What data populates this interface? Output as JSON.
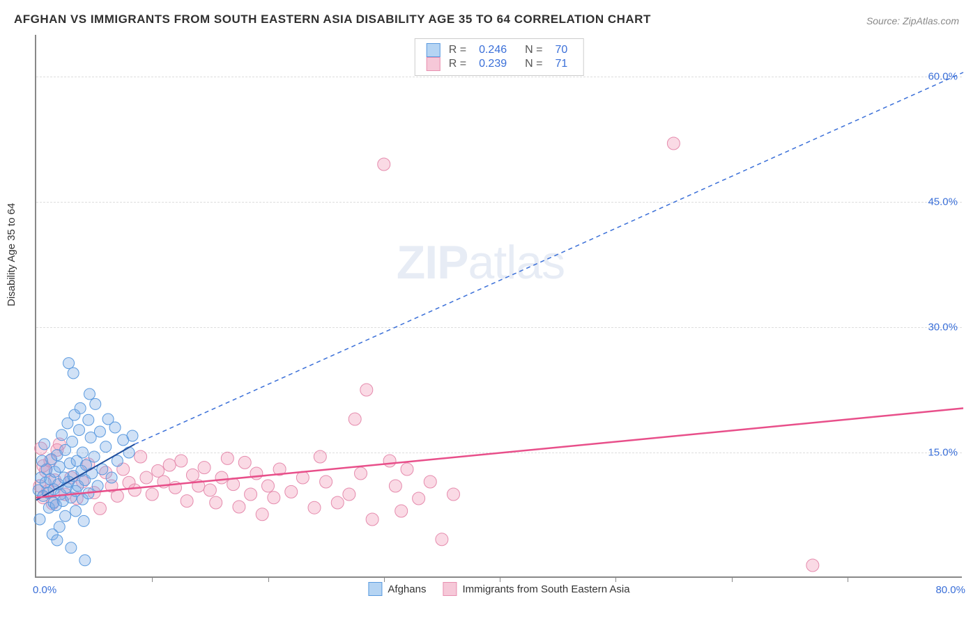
{
  "title": "AFGHAN VS IMMIGRANTS FROM SOUTH EASTERN ASIA DISABILITY AGE 35 TO 64 CORRELATION CHART",
  "source": "Source: ZipAtlas.com",
  "ylabel": "Disability Age 35 to 64",
  "watermark_bold": "ZIP",
  "watermark_rest": "atlas",
  "chart": {
    "type": "scatter",
    "background_color": "#ffffff",
    "grid_color": "#dddddd",
    "axis_color": "#888888",
    "xlim": [
      0,
      80
    ],
    "ylim": [
      0,
      65
    ],
    "x_ticks_minor": [
      10,
      20,
      30,
      40,
      50,
      60,
      70
    ],
    "x_tick_labels": {
      "min": "0.0%",
      "max": "80.0%"
    },
    "y_ticks": [
      {
        "v": 15,
        "label": "15.0%"
      },
      {
        "v": 30,
        "label": "30.0%"
      },
      {
        "v": 45,
        "label": "45.0%"
      },
      {
        "v": 60,
        "label": "60.0%"
      }
    ],
    "tick_label_color": "#3a6fd8",
    "tick_label_fontsize": 15,
    "series": [
      {
        "name": "Afghans",
        "legend_label": "Afghans",
        "color_fill": "rgba(120,170,230,0.35)",
        "color_stroke": "#5a9adf",
        "swatch_fill": "#b5d4f3",
        "swatch_border": "#5a9adf",
        "marker_r": 8,
        "stats": {
          "R_label": "R =",
          "R": "0.246",
          "N_label": "N =",
          "N": "70"
        },
        "trend_solid": {
          "x1": 0,
          "y1": 9.3,
          "x2": 8.5,
          "y2": 16,
          "color": "#1f4e9c",
          "width": 2
        },
        "trend_dash": {
          "x1": 8.5,
          "y1": 16,
          "x2": 80,
          "y2": 60.5,
          "color": "#3a6fd8",
          "width": 1.5,
          "dash": "6,5"
        },
        "points": [
          [
            0.2,
            10.5
          ],
          [
            0.4,
            12.0
          ],
          [
            0.6,
            9.8
          ],
          [
            0.8,
            11.4
          ],
          [
            0.9,
            13.0
          ],
          [
            1.0,
            10.2
          ],
          [
            1.1,
            8.4
          ],
          [
            1.2,
            11.8
          ],
          [
            1.3,
            14.2
          ],
          [
            1.5,
            10.6
          ],
          [
            1.5,
            9.0
          ],
          [
            1.6,
            12.7
          ],
          [
            1.7,
            8.7
          ],
          [
            1.8,
            14.7
          ],
          [
            1.9,
            11.2
          ],
          [
            2.0,
            6.1
          ],
          [
            2.0,
            13.3
          ],
          [
            2.1,
            10.0
          ],
          [
            2.2,
            17.1
          ],
          [
            2.3,
            9.2
          ],
          [
            2.4,
            12.0
          ],
          [
            2.5,
            15.3
          ],
          [
            2.5,
            7.4
          ],
          [
            2.6,
            10.8
          ],
          [
            2.7,
            18.5
          ],
          [
            2.8,
            11.5
          ],
          [
            2.9,
            13.7
          ],
          [
            3.0,
            9.6
          ],
          [
            3.1,
            16.3
          ],
          [
            3.2,
            12.2
          ],
          [
            3.3,
            19.5
          ],
          [
            3.4,
            10.4
          ],
          [
            3.4,
            8.0
          ],
          [
            3.5,
            14.0
          ],
          [
            3.6,
            11.0
          ],
          [
            3.7,
            17.7
          ],
          [
            3.8,
            20.3
          ],
          [
            3.9,
            12.8
          ],
          [
            4.0,
            9.4
          ],
          [
            4.0,
            15.0
          ],
          [
            4.1,
            6.8
          ],
          [
            4.2,
            11.7
          ],
          [
            4.3,
            13.5
          ],
          [
            4.5,
            18.9
          ],
          [
            4.5,
            10.1
          ],
          [
            4.7,
            16.8
          ],
          [
            4.8,
            12.5
          ],
          [
            5.0,
            14.5
          ],
          [
            5.1,
            20.8
          ],
          [
            5.3,
            11.0
          ],
          [
            5.5,
            17.5
          ],
          [
            5.7,
            13.0
          ],
          [
            6.0,
            15.7
          ],
          [
            6.2,
            19.0
          ],
          [
            6.5,
            12.0
          ],
          [
            6.8,
            18.0
          ],
          [
            7.0,
            14.0
          ],
          [
            1.4,
            5.2
          ],
          [
            1.8,
            4.5
          ],
          [
            2.8,
            25.7
          ],
          [
            3.0,
            3.6
          ],
          [
            3.2,
            24.5
          ],
          [
            4.2,
            2.1
          ],
          [
            4.6,
            22.0
          ],
          [
            7.5,
            16.5
          ],
          [
            8.0,
            15.0
          ],
          [
            8.3,
            17.0
          ],
          [
            0.3,
            7.0
          ],
          [
            0.5,
            14.0
          ],
          [
            0.7,
            16.0
          ]
        ]
      },
      {
        "name": "ImmigrantsSEA",
        "legend_label": "Immigrants from South Eastern Asia",
        "color_fill": "rgba(240,150,180,0.35)",
        "color_stroke": "#e58bad",
        "swatch_fill": "#f6c8d8",
        "swatch_border": "#e88fb0",
        "marker_r": 9,
        "stats": {
          "R_label": "R =",
          "R": "0.239",
          "N_label": "N =",
          "N": "71"
        },
        "trend_solid": {
          "x1": 0,
          "y1": 9.6,
          "x2": 80,
          "y2": 20.3,
          "color": "#e84f8a",
          "width": 2.5
        },
        "trend_dash": null,
        "points": [
          [
            0.3,
            11.0
          ],
          [
            0.6,
            9.6
          ],
          [
            0.8,
            12.8
          ],
          [
            1.0,
            10.4
          ],
          [
            1.2,
            14.0
          ],
          [
            1.4,
            8.9
          ],
          [
            1.6,
            11.7
          ],
          [
            2.0,
            16.0
          ],
          [
            2.5,
            10.0
          ],
          [
            3.0,
            12.0
          ],
          [
            3.5,
            9.5
          ],
          [
            4.0,
            11.5
          ],
          [
            4.5,
            13.6
          ],
          [
            5.0,
            10.2
          ],
          [
            5.5,
            8.3
          ],
          [
            6.0,
            12.6
          ],
          [
            6.5,
            11.0
          ],
          [
            7.0,
            9.8
          ],
          [
            7.5,
            13.0
          ],
          [
            8.0,
            11.4
          ],
          [
            8.5,
            10.5
          ],
          [
            9.0,
            14.5
          ],
          [
            9.5,
            12.0
          ],
          [
            10.0,
            10.0
          ],
          [
            10.5,
            12.8
          ],
          [
            11.0,
            11.5
          ],
          [
            11.5,
            13.5
          ],
          [
            12.0,
            10.8
          ],
          [
            12.5,
            14.0
          ],
          [
            13.0,
            9.2
          ],
          [
            13.5,
            12.3
          ],
          [
            14.0,
            11.0
          ],
          [
            14.5,
            13.2
          ],
          [
            15.0,
            10.5
          ],
          [
            15.5,
            9.0
          ],
          [
            16.0,
            12.0
          ],
          [
            16.5,
            14.3
          ],
          [
            17.0,
            11.2
          ],
          [
            17.5,
            8.5
          ],
          [
            18.0,
            13.8
          ],
          [
            18.5,
            10.0
          ],
          [
            19.0,
            12.5
          ],
          [
            19.5,
            7.6
          ],
          [
            20.0,
            11.0
          ],
          [
            20.5,
            9.6
          ],
          [
            21.0,
            13.0
          ],
          [
            22.0,
            10.3
          ],
          [
            23.0,
            12.0
          ],
          [
            24.0,
            8.4
          ],
          [
            24.5,
            14.5
          ],
          [
            25.0,
            11.5
          ],
          [
            26.0,
            9.0
          ],
          [
            27.0,
            10.0
          ],
          [
            27.5,
            19.0
          ],
          [
            28.0,
            12.5
          ],
          [
            28.5,
            22.5
          ],
          [
            29.0,
            7.0
          ],
          [
            30.0,
            49.5
          ],
          [
            30.5,
            14.0
          ],
          [
            31.0,
            11.0
          ],
          [
            31.5,
            8.0
          ],
          [
            32.0,
            13.0
          ],
          [
            33.0,
            9.5
          ],
          [
            34.0,
            11.5
          ],
          [
            35.0,
            4.6
          ],
          [
            36.0,
            10.0
          ],
          [
            55.0,
            52.0
          ],
          [
            67.0,
            1.5
          ],
          [
            1.8,
            15.3
          ],
          [
            0.4,
            15.5
          ],
          [
            0.6,
            13.4
          ]
        ]
      }
    ]
  }
}
